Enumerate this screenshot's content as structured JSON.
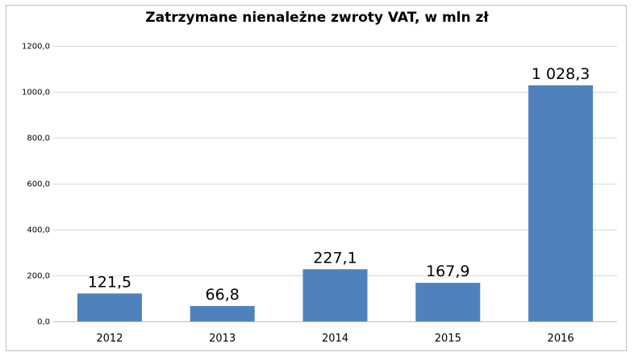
{
  "chart_data": {
    "type": "bar",
    "title": "Zatrzymane nienależne zwroty VAT, w mln zł",
    "xlabel": "",
    "ylabel": "",
    "categories": [
      "2012",
      "2013",
      "2014",
      "2015",
      "2016"
    ],
    "values": [
      121.5,
      66.8,
      227.1,
      167.9,
      1028.3
    ],
    "data_labels": [
      "121,5",
      "66,8",
      "227,1",
      "167,9",
      "1 028,3"
    ],
    "ylim": [
      0,
      1200
    ],
    "y_ticks": [
      {
        "value": 0,
        "label": "0,0"
      },
      {
        "value": 200,
        "label": "200,0"
      },
      {
        "value": 400,
        "label": "400,0"
      },
      {
        "value": 600,
        "label": "600,0"
      },
      {
        "value": 800,
        "label": "800,0"
      },
      {
        "value": 1000,
        "label": "1000,0"
      },
      {
        "value": 1200,
        "label": "1200,0"
      }
    ],
    "grid": true,
    "legend": "none",
    "colors": {
      "bar": "#4f81bd",
      "grid": "#d9d9d9",
      "axis": "#bfbfbf"
    }
  }
}
